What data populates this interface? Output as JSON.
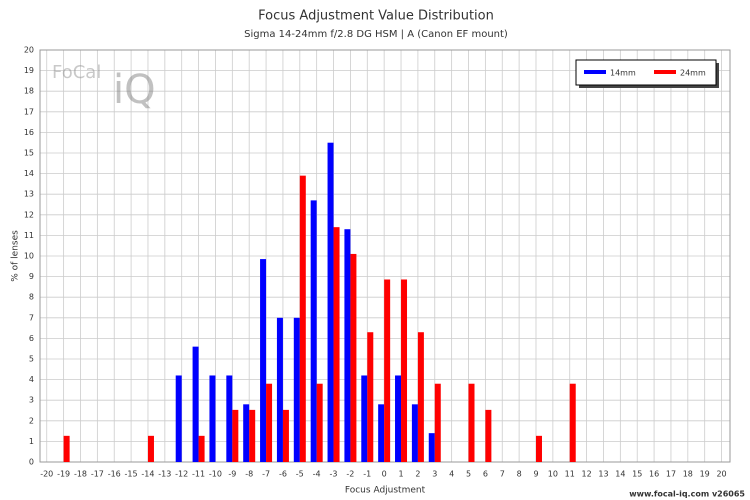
{
  "chart_data": {
    "type": "bar",
    "title": "Focus Adjustment Value Distribution",
    "subtitle": "Sigma 14-24mm f/2.8 DG HSM | A (Canon EF mount)",
    "x_label": "Focus Adjustment",
    "y_label": "% of lenses",
    "logo": [
      "FoCal",
      "iQ"
    ],
    "footer": "www.focal-iq.com  v26065",
    "x": [
      -20,
      -19,
      -18,
      -17,
      -16,
      -15,
      -14,
      -13,
      -12,
      -11,
      -10,
      -9,
      -8,
      -7,
      -6,
      -5,
      -4,
      -3,
      -2,
      -1,
      0,
      1,
      2,
      3,
      4,
      5,
      6,
      7,
      8,
      9,
      10,
      11,
      12,
      13,
      14,
      15,
      16,
      17,
      18,
      19,
      20
    ],
    "series": [
      {
        "name": "14mm",
        "color": "#0000ff",
        "values": [
          0,
          0,
          0,
          0,
          0,
          0,
          0,
          0,
          4.2,
          5.6,
          4.2,
          4.2,
          2.8,
          9.85,
          7.0,
          7.0,
          12.7,
          15.5,
          11.3,
          4.2,
          2.8,
          4.2,
          2.8,
          1.4,
          0,
          0,
          0,
          0,
          0,
          0,
          0,
          0,
          0,
          0,
          0,
          0,
          0,
          0,
          0,
          0,
          0
        ]
      },
      {
        "name": "24mm",
        "color": "#ff0000",
        "values": [
          0,
          1.27,
          0,
          0,
          0,
          0,
          1.27,
          0,
          0,
          1.27,
          0,
          2.53,
          2.53,
          3.8,
          2.53,
          13.9,
          3.8,
          11.4,
          10.1,
          6.3,
          8.86,
          8.86,
          6.3,
          3.8,
          0,
          3.8,
          2.53,
          0,
          0,
          1.27,
          0,
          3.8,
          0,
          0,
          0,
          0,
          0,
          0,
          0,
          0,
          0
        ]
      }
    ],
    "xlim": [
      -20.4,
      20.5
    ],
    "xticks": [
      -20,
      -19,
      -18,
      -17,
      -16,
      -15,
      -14,
      -13,
      -12,
      -11,
      -10,
      -9,
      -8,
      -7,
      -6,
      -5,
      -4,
      -3,
      -2,
      -1,
      0,
      1,
      2,
      3,
      4,
      5,
      6,
      7,
      8,
      9,
      10,
      11,
      12,
      13,
      14,
      15,
      16,
      17,
      18,
      19,
      20
    ],
    "ylim": [
      0,
      20
    ],
    "yticks": [
      0,
      1,
      2,
      3,
      4,
      5,
      6,
      7,
      8,
      9,
      10,
      11,
      12,
      13,
      14,
      15,
      16,
      17,
      18,
      19,
      20
    ],
    "grid": true,
    "legend": "top-right"
  }
}
